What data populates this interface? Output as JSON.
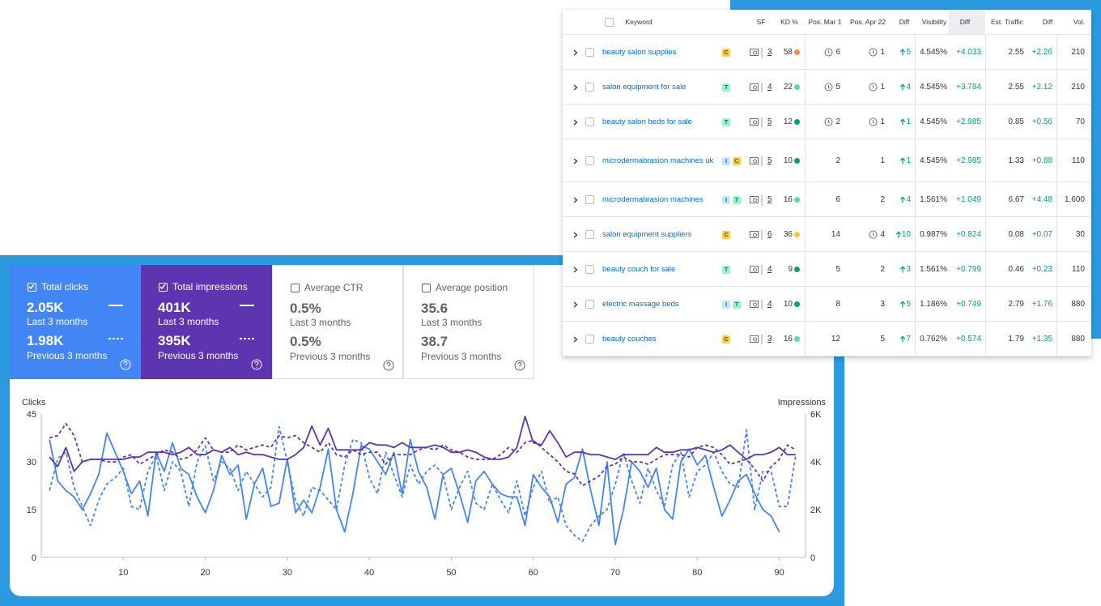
{
  "cards": [
    {
      "title": "Total clicks",
      "checked": true,
      "color": "#4285f4",
      "value": "2.05K",
      "period": "Last 3 months",
      "prev_value": "1.98K",
      "prev_period": "Previous 3 months"
    },
    {
      "title": "Total impressions",
      "checked": true,
      "color": "#5e35b1",
      "value": "401K",
      "period": "Last 3 months",
      "prev_value": "395K",
      "prev_period": "Previous 3 months"
    },
    {
      "title": "Average CTR",
      "checked": false,
      "color": "#ffffff",
      "value": "0.5%",
      "period": "Last 3 months",
      "prev_value": "0.5%",
      "prev_period": "Previous 3 months"
    },
    {
      "title": "Average position",
      "checked": false,
      "color": "#ffffff",
      "value": "35.6",
      "period": "Last 3 months",
      "prev_value": "38.7",
      "prev_period": "Previous 3 months"
    }
  ],
  "table": {
    "headers": [
      "Keyword",
      "SF",
      "KD %",
      "Pos. Mar 1",
      "Pos. Apr 22",
      "Diff",
      "Visibility",
      "Diff",
      "Est. Traffic",
      "Diff",
      "Vol."
    ],
    "rows": [
      {
        "keyword": "beauty salon supplies",
        "intent": [
          "C"
        ],
        "sf": "3",
        "kd": "58",
        "kd_color": "#ff8c43",
        "pos_mar1": "6",
        "pos_mar1_icon": true,
        "pos_apr22": "1",
        "pos_apr22_icon": true,
        "diff": "5",
        "visibility": "4.545%",
        "visibility_diff": "+4.033",
        "traffic": "2.55",
        "traffic_diff": "+2.26",
        "volume": "210"
      },
      {
        "keyword": "salon equipment for sale",
        "intent": [
          "T"
        ],
        "sf": "4",
        "kd": "22",
        "kd_color": "#59ddaa",
        "pos_mar1": "5",
        "pos_mar1_icon": true,
        "pos_apr22": "1",
        "pos_apr22_icon": true,
        "diff": "4",
        "visibility": "4.545%",
        "visibility_diff": "+3.784",
        "traffic": "2.55",
        "traffic_diff": "+2.12",
        "volume": "210"
      },
      {
        "keyword": "beauty salon beds for sale",
        "intent": [
          "T"
        ],
        "sf": "5",
        "kd": "12",
        "kd_color": "#009f81",
        "pos_mar1": "2",
        "pos_mar1_icon": true,
        "pos_apr22": "1",
        "pos_apr22_icon": true,
        "diff": "1",
        "visibility": "4.545%",
        "visibility_diff": "+2.985",
        "traffic": "0.85",
        "traffic_diff": "+0.56",
        "volume": "70"
      },
      {
        "keyword": "microdermabrasion machines uk",
        "intent": [
          "I",
          "C"
        ],
        "sf": "5",
        "kd": "10",
        "kd_color": "#009f81",
        "pos_mar1": "2",
        "pos_mar1_icon": false,
        "pos_apr22": "1",
        "pos_apr22_icon": false,
        "diff": "1",
        "visibility": "4.545%",
        "visibility_diff": "+2.985",
        "traffic": "1.33",
        "traffic_diff": "+0.88",
        "volume": "110"
      },
      {
        "keyword": "microdermabrasion machines",
        "intent": [
          "I",
          "T"
        ],
        "sf": "5",
        "kd": "16",
        "kd_color": "#59ddaa",
        "pos_mar1": "6",
        "pos_mar1_icon": false,
        "pos_apr22": "2",
        "pos_apr22_icon": false,
        "diff": "4",
        "visibility": "1.561%",
        "visibility_diff": "+1.049",
        "traffic": "6.67",
        "traffic_diff": "+4.48",
        "volume": "1,600"
      },
      {
        "keyword": "salon equipment suppliers",
        "intent": [
          "C"
        ],
        "sf": "6",
        "kd": "36",
        "kd_color": "#fdc23c",
        "pos_mar1": "14",
        "pos_mar1_icon": false,
        "pos_apr22": "4",
        "pos_apr22_icon": true,
        "diff": "10",
        "visibility": "0.987%",
        "visibility_diff": "+0.824",
        "traffic": "0.08",
        "traffic_diff": "+0.07",
        "volume": "30"
      },
      {
        "keyword": "beauty couch for sale",
        "intent": [
          "T"
        ],
        "sf": "4",
        "kd": "9",
        "kd_color": "#009f81",
        "pos_mar1": "5",
        "pos_mar1_icon": false,
        "pos_apr22": "2",
        "pos_apr22_icon": false,
        "diff": "3",
        "visibility": "1.561%",
        "visibility_diff": "+0.799",
        "traffic": "0.46",
        "traffic_diff": "+0.23",
        "volume": "110"
      },
      {
        "keyword": "electric massage beds",
        "intent": [
          "I",
          "T"
        ],
        "sf": "4",
        "kd": "10",
        "kd_color": "#009f81",
        "pos_mar1": "8",
        "pos_mar1_icon": false,
        "pos_apr22": "3",
        "pos_apr22_icon": false,
        "diff": "5",
        "visibility": "1.186%",
        "visibility_diff": "+0.749",
        "traffic": "2.79",
        "traffic_diff": "+1.76",
        "volume": "880"
      },
      {
        "keyword": "beauty couches",
        "intent": [
          "C"
        ],
        "sf": "3",
        "kd": "16",
        "kd_color": "#59ddaa",
        "pos_mar1": "12",
        "pos_mar1_icon": false,
        "pos_apr22": "5",
        "pos_apr22_icon": false,
        "diff": "7",
        "visibility": "0.762%",
        "visibility_diff": "+0.574",
        "traffic": "1.79",
        "traffic_diff": "+1.35",
        "volume": "880"
      }
    ]
  },
  "chart_data": {
    "type": "line",
    "y_label": "Clicks",
    "y2_label": "Impressions",
    "x": [
      1,
      2,
      3,
      4,
      5,
      6,
      7,
      8,
      9,
      10,
      11,
      12,
      13,
      14,
      15,
      16,
      17,
      18,
      19,
      20,
      21,
      22,
      23,
      24,
      25,
      26,
      27,
      28,
      29,
      30,
      31,
      32,
      33,
      34,
      35,
      36,
      37,
      38,
      39,
      40,
      41,
      42,
      43,
      44,
      45,
      46,
      47,
      48,
      49,
      50,
      51,
      52,
      53,
      54,
      55,
      56,
      57,
      58,
      59,
      60,
      61,
      62,
      63,
      64,
      65,
      66,
      67,
      68,
      69,
      70,
      71,
      72,
      73,
      74,
      75,
      76,
      77,
      78,
      79,
      80,
      81,
      82,
      83,
      84,
      85,
      86,
      87,
      88,
      89,
      90,
      91,
      92
    ],
    "xlim": [
      0,
      93.2
    ],
    "xticks": [
      10,
      20,
      30,
      40,
      50,
      60,
      70,
      80,
      90
    ],
    "ylim": [
      0,
      45
    ],
    "yticks": [
      0,
      15,
      30,
      45
    ],
    "y2lim": [
      0,
      6000
    ],
    "y2ticks": [
      0,
      {
        "value": 2000,
        "label": "2K"
      },
      {
        "value": 4000,
        "label": "4K"
      },
      {
        "value": 6000,
        "label": "6K"
      }
    ],
    "grid": false,
    "series": [
      {
        "color": "#4285f4",
        "dashed": false,
        "axis": "y",
        "values": [
          37,
          24,
          21,
          19,
          15,
          20,
          26,
          39,
          33,
          27,
          20,
          24,
          13,
          33,
          27,
          36,
          28,
          26,
          19,
          14,
          21,
          32,
          26,
          29,
          12,
          23,
          28,
          16,
          17,
          31,
          14,
          18,
          14,
          22,
          34,
          15,
          8,
          20,
          35,
          34,
          30,
          26,
          33,
          20,
          37,
          27,
          22,
          12,
          26,
          28,
          20,
          11,
          24,
          27,
          23,
          20,
          19,
          19,
          10,
          26,
          22,
          19,
          11,
          23,
          25,
          34,
          21,
          10,
          30,
          4,
          15,
          30,
          27,
          22,
          28,
          15,
          12,
          30,
          34,
          29,
          32,
          22,
          13,
          18,
          24,
          26,
          20,
          15,
          13,
          8,
          null,
          null
        ]
      },
      {
        "color": "#4285f4",
        "dashed": true,
        "axis": "y",
        "values": [
          21,
          31,
          33,
          22,
          16,
          10,
          18,
          23,
          25,
          28,
          16,
          15,
          27,
          32,
          21,
          30,
          27,
          16,
          30,
          35,
          24,
          30,
          28,
          21,
          27,
          23,
          19,
          22,
          41,
          30,
          18,
          13,
          22,
          21,
          18,
          15,
          29,
          37,
          36,
          25,
          20,
          33,
          26,
          19,
          29,
          23,
          27,
          29,
          26,
          15,
          22,
          27,
          17,
          15,
          23,
          18,
          14,
          24,
          13,
          22,
          27,
          17,
          19,
          10,
          7,
          5,
          10,
          13,
          15,
          23,
          33,
          24,
          17,
          28,
          21,
          16,
          29,
          33,
          19,
          27,
          29,
          33,
          27,
          23,
          22,
          40,
          15,
          27,
          27,
          16,
          16,
          32
        ]
      },
      {
        "color": "#5e35b1",
        "dashed": false,
        "axis": "y2",
        "values": [
          4200,
          3800,
          4600,
          3600,
          4000,
          4100,
          4100,
          4100,
          4100,
          4100,
          4200,
          4200,
          4400,
          4400,
          4400,
          4300,
          4400,
          4600,
          4300,
          4300,
          4500,
          4400,
          4600,
          4300,
          4400,
          4300,
          4300,
          4200,
          4100,
          4100,
          4300,
          4600,
          5500,
          4700,
          5400,
          4500,
          4500,
          4500,
          4500,
          4800,
          4700,
          4700,
          4600,
          4800,
          4600,
          4600,
          4600,
          4700,
          4600,
          4400,
          4400,
          4500,
          4400,
          4200,
          4100,
          4100,
          4200,
          4600,
          5900,
          4800,
          4700,
          5300,
          4800,
          4200,
          4400,
          4400,
          4300,
          4300,
          4200,
          4100,
          4300,
          4300,
          4300,
          4300,
          4600,
          4400,
          4400,
          4500,
          4500,
          4600,
          4500,
          4400,
          4500,
          4700,
          4400,
          4100,
          4300,
          4300,
          4400,
          4600,
          4300,
          4300
        ]
      },
      {
        "color": "#5e35b1",
        "dashed": true,
        "axis": "y2",
        "values": [
          5000,
          5100,
          5600,
          5100,
          4000,
          4100,
          4100,
          4000,
          4000,
          4200,
          4300,
          3900,
          4100,
          4300,
          4500,
          4400,
          4100,
          4200,
          4500,
          5000,
          4500,
          4400,
          4400,
          4700,
          4500,
          4600,
          4700,
          4600,
          5100,
          5000,
          5100,
          4800,
          4600,
          4400,
          4800,
          4300,
          4200,
          4500,
          4300,
          4400,
          4400,
          3900,
          4300,
          4300,
          4300,
          4500,
          4600,
          4500,
          4700,
          4500,
          4400,
          4200,
          4100,
          4100,
          4100,
          4300,
          4600,
          4400,
          4800,
          4900,
          4600,
          4300,
          4000,
          3600,
          3500,
          3000,
          3200,
          3400,
          3800,
          3900,
          4200,
          4000,
          4000,
          3900,
          4100,
          4300,
          4300,
          4300,
          4200,
          4600,
          4700,
          4600,
          4300,
          3900,
          4000,
          4100,
          3700,
          3200,
          3800,
          4100,
          4700,
          4500
        ]
      }
    ]
  }
}
